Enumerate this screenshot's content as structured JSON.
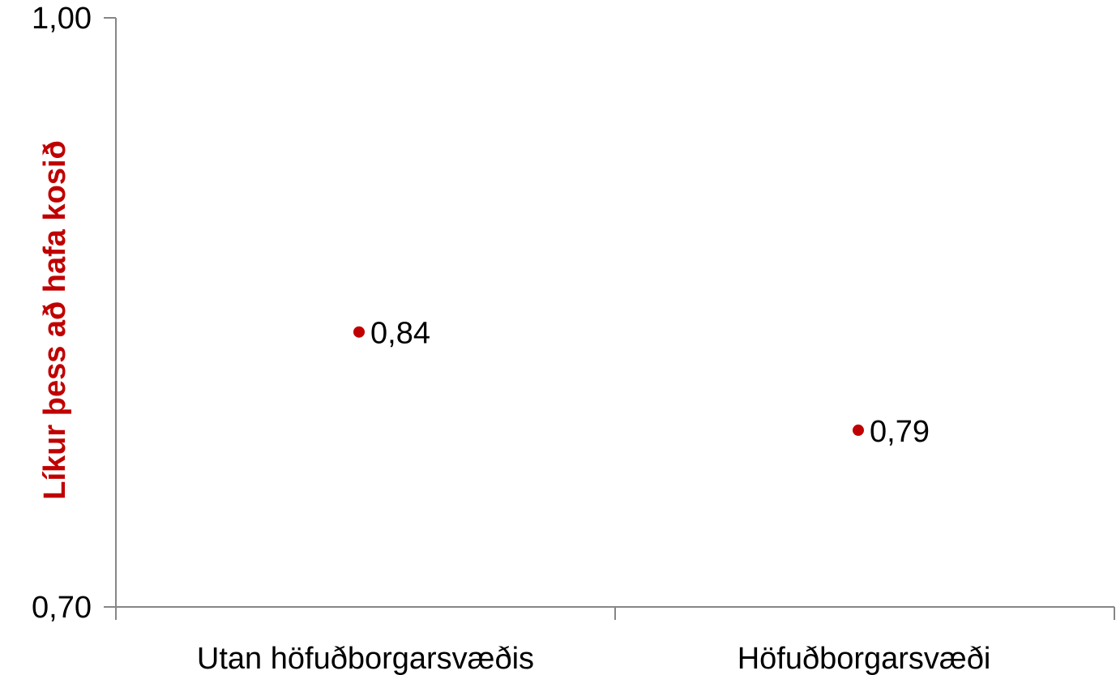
{
  "chart_data": {
    "type": "scatter",
    "title": "",
    "xlabel": "",
    "ylabel": "Líkur þess að hafa kosið",
    "categories": [
      "Utan höfuðborgarsvæðis",
      "Höfuðborgarsvæði"
    ],
    "values": [
      0.84,
      0.79
    ],
    "value_labels": [
      "0,84",
      "0,79"
    ],
    "ylim": [
      0.7,
      1.0
    ],
    "ytick_labels": [
      "0,70",
      "1,00"
    ],
    "grid": false,
    "legend": "none",
    "colors": {
      "marker": "#C00000",
      "ylabel": "#C00000",
      "axis": "#868686"
    }
  }
}
